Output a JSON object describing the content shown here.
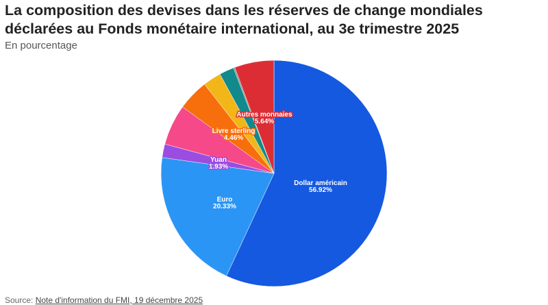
{
  "title_line1": "La composition des devises dans les réserves de change mondiales",
  "title_line2": "déclarées au Fonds monétaire international, au 3e trimestre 2025",
  "subtitle": "En pourcentage",
  "source_prefix": "Source: ",
  "source_link": "Note d'information du FMI, 19 décembre 2025",
  "chart_data": {
    "type": "pie",
    "slices": [
      {
        "name": "Dollar américain",
        "value": 56.92,
        "label": "56.92%",
        "color": "#1559e0"
      },
      {
        "name": "Euro",
        "value": 20.33,
        "label": "20.33%",
        "color": "#2b95f5"
      },
      {
        "name": "Yuan",
        "value": 1.93,
        "label": "1.93%",
        "color": "#9a4de0"
      },
      {
        "name": "",
        "value": 5.82,
        "label": "",
        "color": "#f5498a"
      },
      {
        "name": "Livre sterling",
        "value": 4.46,
        "label": "4.46%",
        "color": "#f76e0c"
      },
      {
        "name": "",
        "value": 2.6,
        "label": "",
        "color": "#f2b619"
      },
      {
        "name": "",
        "value": 2.1,
        "label": "",
        "color": "#128a8c"
      },
      {
        "name": "",
        "value": 0.2,
        "label": "",
        "color": "#7a8a80"
      },
      {
        "name": "Autres monnaies",
        "value": 5.64,
        "label": "5.64%",
        "color": "#dc2d35"
      }
    ]
  }
}
